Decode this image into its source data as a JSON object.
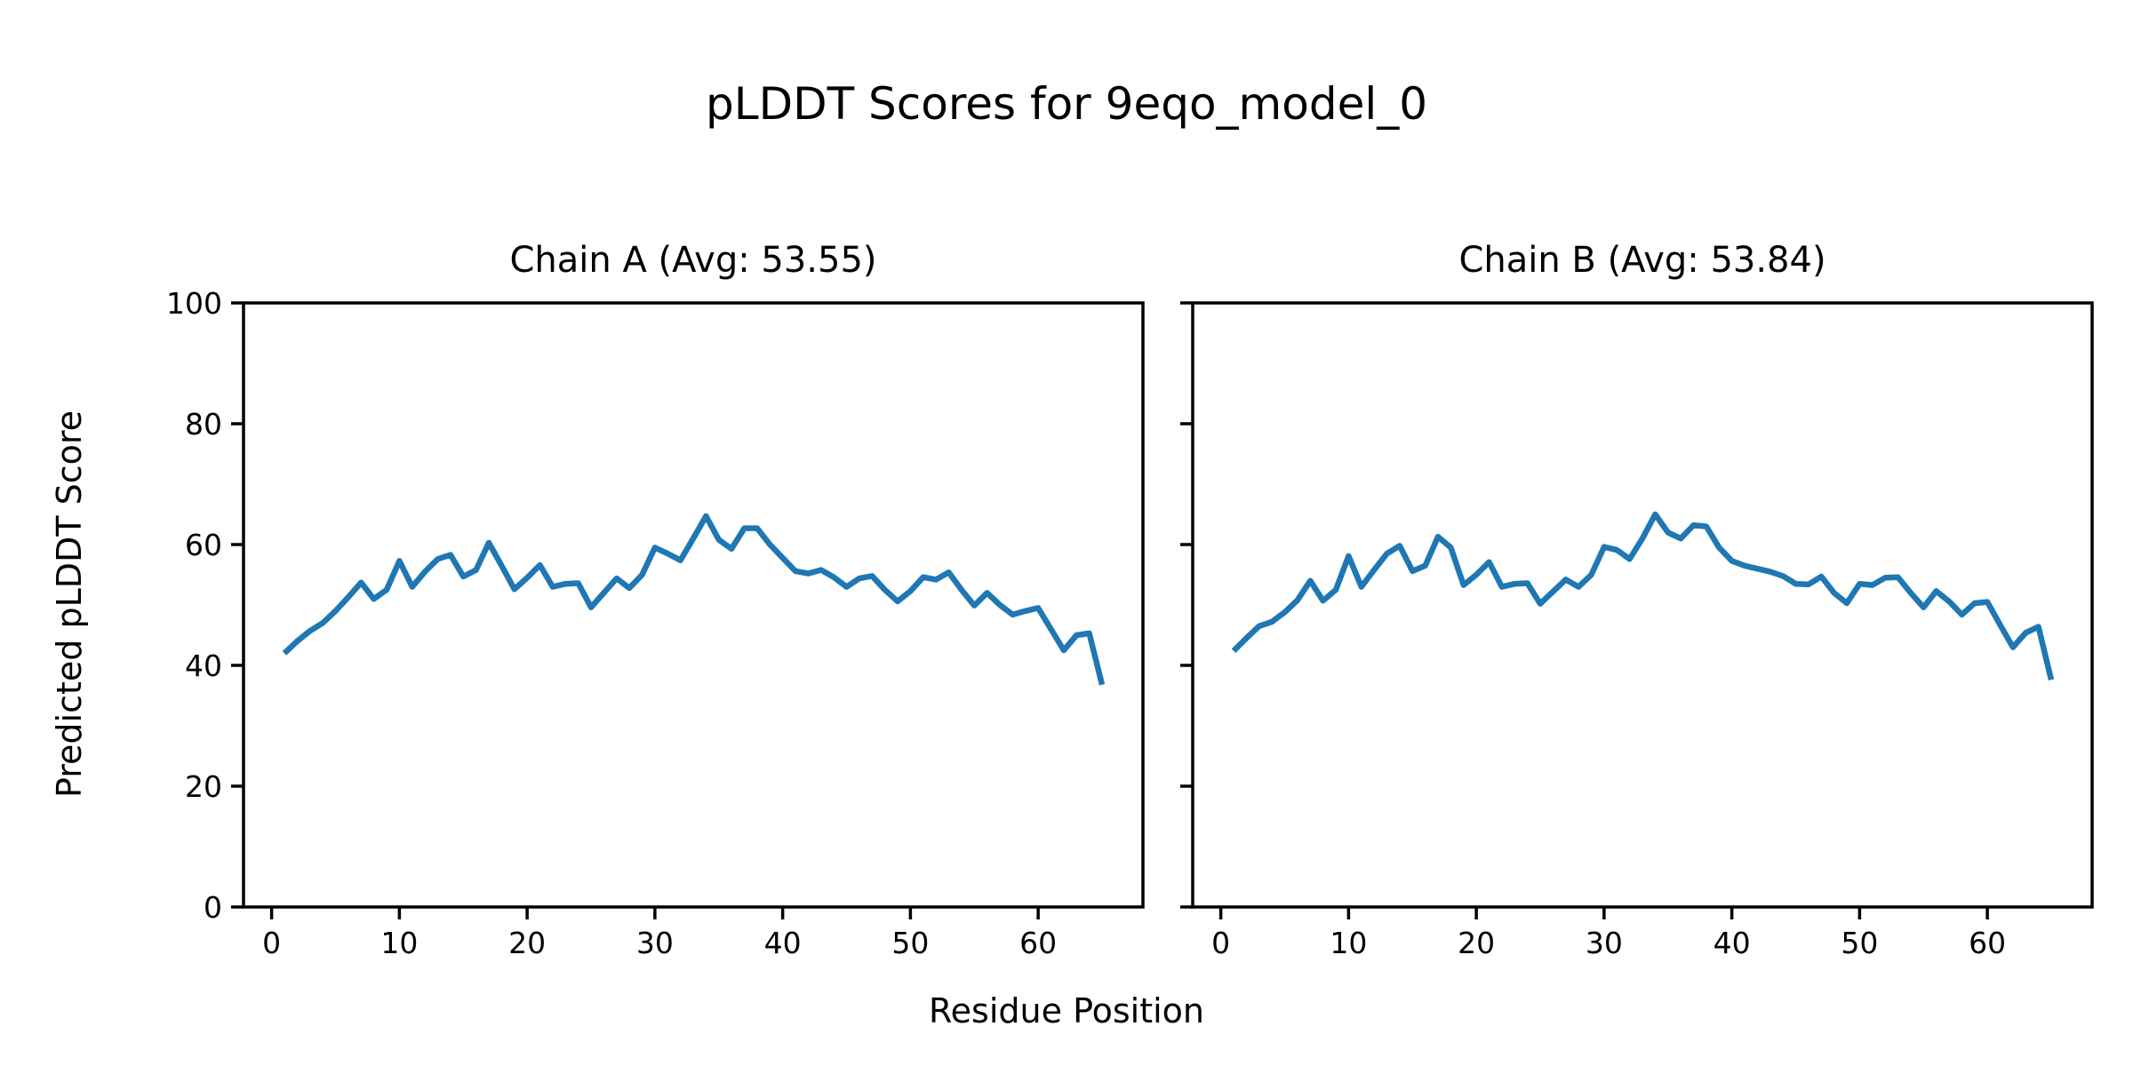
{
  "figure": {
    "title": "pLDDT Scores for 9eqo_model_0",
    "xlabel": "Residue Position",
    "ylabel": "Predicted pLDDT Score"
  },
  "style": {
    "line_color": "#1f77b4",
    "axis_color": "#000000",
    "background_color": "#ffffff"
  },
  "chart_data": [
    {
      "type": "line",
      "title": "Chain A (Avg: 53.55)",
      "chain": "A",
      "avg": 53.55,
      "grid": false,
      "legend_position": "none",
      "y_tick_labels_visible": true,
      "xticks": [
        0,
        10,
        20,
        30,
        40,
        50,
        60
      ],
      "yticks": [
        0,
        20,
        40,
        60,
        80,
        100
      ],
      "xlim": [
        -2.2,
        68.2
      ],
      "ylim": [
        0,
        100
      ],
      "x": [
        1,
        2,
        3,
        4,
        5,
        6,
        7,
        8,
        9,
        10,
        11,
        12,
        13,
        14,
        15,
        16,
        17,
        18,
        19,
        20,
        21,
        22,
        23,
        24,
        25,
        26,
        27,
        28,
        29,
        30,
        31,
        32,
        33,
        34,
        35,
        36,
        37,
        38,
        39,
        40,
        41,
        42,
        43,
        44,
        45,
        46,
        47,
        48,
        49,
        50,
        51,
        52,
        53,
        54,
        55,
        56,
        57,
        58,
        59,
        60,
        61,
        62,
        63,
        64,
        65
      ],
      "y": [
        42.0,
        44.0,
        45.7,
        47.0,
        49.0,
        51.3,
        53.7,
        51.0,
        52.5,
        57.3,
        53.0,
        55.5,
        57.6,
        58.3,
        54.7,
        55.8,
        60.3,
        56.5,
        52.6,
        54.5,
        56.6,
        53.0,
        53.5,
        53.6,
        49.6,
        52.0,
        54.4,
        52.8,
        55.0,
        59.5,
        58.5,
        57.4,
        61.0,
        64.7,
        60.8,
        59.3,
        62.7,
        62.7,
        60.0,
        57.8,
        55.6,
        55.2,
        55.8,
        54.6,
        53.0,
        54.4,
        54.8,
        52.5,
        50.6,
        52.3,
        54.6,
        54.2,
        55.4,
        52.5,
        49.9,
        52.0,
        50.0,
        48.4,
        49.0,
        49.5,
        46.0,
        42.5,
        45.0,
        45.3,
        36.8
      ]
    },
    {
      "type": "line",
      "title": "Chain B (Avg: 53.84)",
      "chain": "B",
      "avg": 53.84,
      "grid": false,
      "legend_position": "none",
      "y_tick_labels_visible": false,
      "xticks": [
        0,
        10,
        20,
        30,
        40,
        50,
        60
      ],
      "yticks": [
        0,
        20,
        40,
        60,
        80,
        100
      ],
      "xlim": [
        -2.2,
        68.2
      ],
      "ylim": [
        0,
        100
      ],
      "x": [
        1,
        2,
        3,
        4,
        5,
        6,
        7,
        8,
        9,
        10,
        11,
        12,
        13,
        14,
        15,
        16,
        17,
        18,
        19,
        20,
        21,
        22,
        23,
        24,
        25,
        26,
        27,
        28,
        29,
        30,
        31,
        32,
        33,
        34,
        35,
        36,
        37,
        38,
        39,
        40,
        41,
        42,
        43,
        44,
        45,
        46,
        47,
        48,
        49,
        50,
        51,
        52,
        53,
        54,
        55,
        56,
        57,
        58,
        59,
        60,
        61,
        62,
        63,
        64,
        65
      ],
      "y": [
        42.4,
        44.5,
        46.5,
        47.2,
        48.8,
        50.8,
        54.0,
        50.7,
        52.5,
        58.1,
        53.0,
        55.8,
        58.5,
        59.8,
        55.6,
        56.5,
        61.3,
        59.5,
        53.3,
        55.0,
        57.1,
        53.0,
        53.5,
        53.6,
        50.2,
        52.2,
        54.2,
        53.0,
        55.0,
        59.6,
        59.1,
        57.6,
        61.0,
        65.0,
        62.0,
        61.0,
        63.2,
        63.0,
        59.5,
        57.3,
        56.5,
        56.0,
        55.5,
        54.8,
        53.5,
        53.4,
        54.7,
        52.0,
        50.3,
        53.5,
        53.3,
        54.5,
        54.6,
        52.0,
        49.6,
        52.3,
        50.6,
        48.4,
        50.3,
        50.5,
        46.7,
        43.0,
        45.4,
        46.4,
        37.6
      ]
    }
  ]
}
